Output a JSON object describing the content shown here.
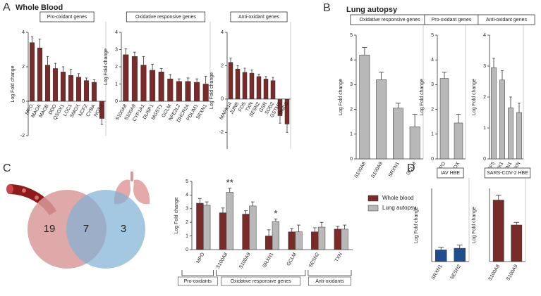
{
  "panel_labels": [
    "A",
    "B",
    "C",
    "D"
  ],
  "headings": [
    "Whole Blood",
    "Lung autopsy"
  ],
  "venn": {
    "left_only": 19,
    "both": 7,
    "right_only": 3
  },
  "chart_data": [
    {
      "type": "bar",
      "title": "Pro-oxidant genes",
      "ylabel": "Log Fold change",
      "categories": [
        "MPO",
        "MAOA",
        "MAOB",
        "DDO",
        "QSOX1",
        "LOC1",
        "SMOX",
        "NCF2",
        "CYBA",
        "NOS3"
      ],
      "values": [
        3.4,
        3.1,
        2.1,
        1.9,
        1.7,
        1.5,
        1.4,
        1.2,
        1.1,
        -1.0
      ],
      "errors": [
        0.35,
        0.5,
        0.5,
        0.3,
        0.3,
        0.35,
        0.2,
        0.15,
        0.15,
        0.35
      ],
      "color": "#7b2a2a",
      "ylim": [
        -2,
        4
      ],
      "yticks": [
        -2,
        0,
        2,
        4
      ]
    },
    {
      "type": "bar",
      "title": "Oxidative responsive genes",
      "ylabel": "Log Fold change",
      "categories": [
        "S100A8",
        "S100A9",
        "CYP1A1",
        "DUSP1",
        "MGST1",
        "GCLM",
        "NFE2L2",
        "DHCR24",
        "PDLIM1",
        "SRXN1"
      ],
      "values": [
        2.7,
        2.6,
        2.1,
        1.8,
        1.7,
        1.3,
        1.15,
        1.15,
        1.1,
        1.0
      ],
      "errors": [
        0.35,
        0.25,
        0.5,
        0.35,
        0.2,
        0.25,
        0.15,
        0.2,
        0.2,
        0.45
      ],
      "color": "#7b2a2a",
      "ylim": [
        0,
        4
      ],
      "yticks": [
        0,
        1,
        2,
        3,
        4
      ]
    },
    {
      "type": "bar",
      "title": "Anti-oxidant genes",
      "ylabel": "Log Fold change",
      "categories": [
        "MAPK14",
        "JUNB",
        "FOS",
        "TXN",
        "SESN2",
        "GSR",
        "SOD2",
        "GSTM3",
        "DRD3"
      ],
      "values": [
        2.2,
        1.8,
        1.6,
        1.55,
        1.35,
        1.2,
        1.1,
        -1.0,
        -1.5
      ],
      "errors": [
        0.25,
        0.2,
        0.25,
        0.2,
        0.15,
        0.15,
        0.2,
        0.45,
        0.5
      ],
      "color": "#7b2a2a",
      "ylim": [
        -3,
        4
      ],
      "yticks": [
        -2,
        0,
        2,
        4
      ]
    },
    {
      "type": "bar",
      "title": "Oxidative responsive genes",
      "ylabel": "Log Fold change",
      "categories": [
        "S100A8",
        "S100A9",
        "SRXN1",
        "GCLM"
      ],
      "values": [
        4.2,
        3.2,
        2.05,
        1.3
      ],
      "errors": [
        0.3,
        0.3,
        0.2,
        0.5
      ],
      "color": "#b8b8b8",
      "ylim": [
        0,
        5
      ],
      "yticks": [
        0,
        1,
        2,
        3,
        4,
        5
      ]
    },
    {
      "type": "bar",
      "title": "Pro-oxidant genes",
      "ylabel": "Log Fold change",
      "categories": [
        "MPO",
        "LOX"
      ],
      "values": [
        3.25,
        1.45
      ],
      "errors": [
        0.25,
        0.35
      ],
      "color": "#b8b8b8",
      "ylim": [
        0,
        5
      ],
      "yticks": [
        0,
        1,
        2,
        3,
        4,
        5
      ]
    },
    {
      "type": "bar",
      "title": "Anti-oxidant genes",
      "ylabel": "Log Fold change",
      "categories": [
        "FGF5",
        "HMOX1",
        "SESN1",
        "TXN"
      ],
      "values": [
        2.95,
        2.55,
        1.65,
        1.5
      ],
      "errors": [
        0.3,
        0.3,
        0.35,
        0.3
      ],
      "color": "#b8b8b8",
      "ylim": [
        0,
        4
      ],
      "yticks": [
        0,
        1,
        2,
        3,
        4
      ]
    },
    {
      "type": "grouped_bar",
      "ylabel": "Log Fold change",
      "categories": [
        "MPO",
        "S100A8",
        "S100A9",
        "SRXN1",
        "GCLM",
        "SESN2",
        "TXN"
      ],
      "series": [
        {
          "name": "Whole blood",
          "color": "#7b2a2a",
          "values": [
            3.4,
            2.7,
            2.6,
            1.0,
            1.3,
            1.3,
            1.5
          ],
          "errors": [
            0.35,
            0.35,
            0.25,
            0.45,
            0.25,
            0.3,
            0.2
          ]
        },
        {
          "name": "Lung autopsy",
          "color": "#b8b8b8",
          "values": [
            3.25,
            4.2,
            3.2,
            2.05,
            1.3,
            1.65,
            1.5
          ],
          "errors": [
            0.25,
            0.3,
            0.3,
            0.2,
            0.5,
            0.35,
            0.3
          ]
        }
      ],
      "annotations": [
        "**",
        "*"
      ],
      "group_labels": [
        "Pro-oxidants",
        "Oxidative responsive genes",
        "Anti-oxidants"
      ],
      "ylim": [
        0,
        5
      ],
      "yticks": [
        0,
        1,
        2,
        3,
        4,
        5
      ]
    },
    {
      "type": "bar",
      "title": "IAV HBE",
      "ylabel": "Log Fold change",
      "categories": [
        "SRXN1",
        "SESN2"
      ],
      "values": [
        0.35,
        0.4
      ],
      "errors": [
        0.08,
        0.1
      ],
      "color": "#1f4e8c",
      "ylim": [
        0,
        2.2
      ]
    },
    {
      "type": "bar",
      "title": "SARS-COV-2 HBE",
      "ylabel": "Log Fold change",
      "categories": [
        "S100A8",
        "S100A9"
      ],
      "values": [
        1.85,
        1.1
      ],
      "errors": [
        0.15,
        0.08
      ],
      "color": "#7b2a2a",
      "ylim": [
        0,
        2.2
      ]
    }
  ]
}
